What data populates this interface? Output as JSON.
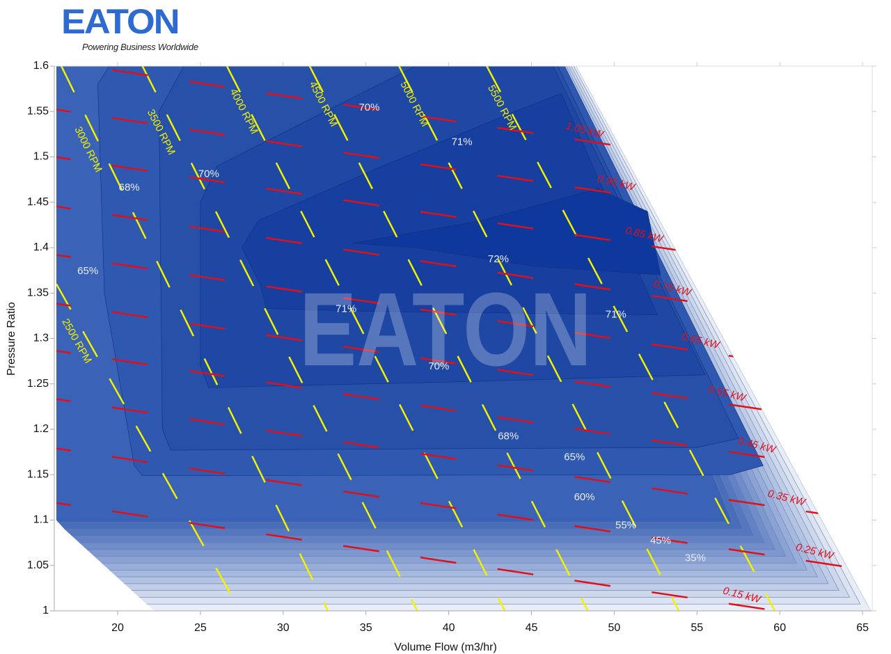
{
  "logo": {
    "word": "EATON",
    "tagline": "Powering Business Worldwide"
  },
  "watermark": "EATON",
  "chart_data": {
    "type": "contour",
    "title": "",
    "xlabel": "Volume Flow (m3/hr)",
    "ylabel": "Pressure Ratio",
    "xlim": [
      16.2,
      65.6
    ],
    "ylim": [
      1.0,
      1.6
    ],
    "x_ticks": [
      "20",
      "25",
      "30",
      "35",
      "40",
      "45",
      "50",
      "55",
      "60",
      "65"
    ],
    "y_ticks": [
      "1",
      "1.05",
      "1.1",
      "1.15",
      "1.2",
      "1.25",
      "1.3",
      "1.35",
      "1.4",
      "1.45",
      "1.5",
      "1.55",
      "1.6"
    ],
    "grid": false,
    "colors": {
      "speed_lines": "#f2f200",
      "power_lines": "#e0101a",
      "efficiency_high": "#0f389b",
      "efficiency_low": "#e8edf7"
    },
    "map_boundary": [
      [
        16.3,
        1.6
      ],
      [
        47.7,
        1.6
      ],
      [
        65.5,
        1.0
      ],
      [
        22.2,
        1.0
      ],
      [
        16.8,
        1.09
      ],
      [
        16.3,
        1.1
      ]
    ],
    "efficiency_contours": [
      {
        "level": "65%",
        "points": [
          [
            18.8,
            1.58
          ],
          [
            19.5,
            1.6
          ],
          [
            47,
            1.6
          ],
          [
            59,
            1.16
          ],
          [
            57,
            1.15
          ],
          [
            21.5,
            1.149
          ],
          [
            21,
            1.16
          ],
          [
            19.2,
            1.35
          ]
        ]
      },
      {
        "level": "68%",
        "points": [
          [
            22.5,
            1.55
          ],
          [
            24,
            1.6
          ],
          [
            46.6,
            1.6
          ],
          [
            57.5,
            1.19
          ],
          [
            55,
            1.18
          ],
          [
            23.2,
            1.177
          ],
          [
            22.7,
            1.2
          ]
        ]
      },
      {
        "level": "70%",
        "points": [
          [
            25.0,
            1.45
          ],
          [
            26,
            1.49
          ],
          [
            32,
            1.545
          ],
          [
            38,
            1.6
          ],
          [
            46.3,
            1.6
          ],
          [
            55.5,
            1.26
          ],
          [
            40,
            1.252
          ],
          [
            25.5,
            1.246
          ],
          [
            25.0,
            1.27
          ]
        ]
      },
      {
        "level": "71%",
        "points": [
          [
            27.5,
            1.4
          ],
          [
            28.5,
            1.43
          ],
          [
            36,
            1.49
          ],
          [
            44,
            1.55
          ],
          [
            46.8,
            1.57
          ],
          [
            52.6,
            1.326
          ],
          [
            35,
            1.33
          ],
          [
            29,
            1.333
          ],
          [
            28.6,
            1.36
          ]
        ]
      },
      {
        "level": "72%",
        "points": [
          [
            34.2,
            1.405
          ],
          [
            42,
            1.43
          ],
          [
            49,
            1.465
          ],
          [
            52.0,
            1.44
          ],
          [
            52.8,
            1.37
          ],
          [
            45,
            1.38
          ],
          [
            38,
            1.4
          ]
        ]
      }
    ],
    "efficiency_labels": [
      {
        "text": "70%",
        "x": 35.2,
        "y": 1.554
      },
      {
        "text": "71%",
        "x": 40.8,
        "y": 1.516
      },
      {
        "text": "70%",
        "x": 25.5,
        "y": 1.481
      },
      {
        "text": "68%",
        "x": 20.7,
        "y": 1.466
      },
      {
        "text": "65%",
        "x": 18.2,
        "y": 1.374
      },
      {
        "text": "72%",
        "x": 43.0,
        "y": 1.387
      },
      {
        "text": "71%",
        "x": 33.8,
        "y": 1.332
      },
      {
        "text": "71%",
        "x": 50.1,
        "y": 1.326
      },
      {
        "text": "70%",
        "x": 39.4,
        "y": 1.269
      },
      {
        "text": "68%",
        "x": 43.6,
        "y": 1.192
      },
      {
        "text": "65%",
        "x": 47.6,
        "y": 1.169
      },
      {
        "text": "60%",
        "x": 48.2,
        "y": 1.125
      },
      {
        "text": "55%",
        "x": 50.7,
        "y": 1.094
      },
      {
        "text": "45%",
        "x": 52.8,
        "y": 1.077
      },
      {
        "text": "35%",
        "x": 54.9,
        "y": 1.058
      }
    ],
    "speed_lines": [
      {
        "name": "2500 RPM",
        "points": [
          [
            16.3,
            1.36
          ],
          [
            27.4,
            1.0
          ]
        ],
        "label_at": [
          17.5,
          1.297
        ]
      },
      {
        "name": "3000 RPM",
        "points": [
          [
            16.6,
            1.6
          ],
          [
            32.7,
            1.0
          ]
        ],
        "label_at": [
          18.2,
          1.508
        ]
      },
      {
        "name": "3500 RPM",
        "points": [
          [
            21.5,
            1.6
          ],
          [
            38.1,
            1.0
          ]
        ],
        "label_at": [
          22.6,
          1.527
        ]
      },
      {
        "name": "4000 RPM",
        "points": [
          [
            26.6,
            1.6
          ],
          [
            43.4,
            1.0
          ]
        ],
        "label_at": [
          27.6,
          1.55
        ]
      },
      {
        "name": "4500 RPM",
        "points": [
          [
            31.6,
            1.6
          ],
          [
            48.4,
            1.0
          ]
        ],
        "label_at": [
          32.4,
          1.558
        ]
      },
      {
        "name": "5000 RPM",
        "points": [
          [
            37.0,
            1.6
          ],
          [
            53.9,
            1.0
          ]
        ],
        "label_at": [
          37.9,
          1.558
        ]
      },
      {
        "name": "5500 RPM",
        "points": [
          [
            42.3,
            1.6
          ],
          [
            59.7,
            1.0
          ]
        ],
        "label_at": [
          43.2,
          1.554
        ]
      }
    ],
    "power_lines": [
      {
        "name": "1.05 kW",
        "end": [
          50.3,
          1.512
        ]
      },
      {
        "name": "0.95 kW",
        "end": [
          52.2,
          1.454
        ]
      },
      {
        "name": "0.85 kW",
        "end": [
          53.9,
          1.397
        ]
      },
      {
        "name": "0.75 kW",
        "end": [
          55.6,
          1.338
        ]
      },
      {
        "name": "0.65 kW",
        "end": [
          57.3,
          1.28
        ]
      },
      {
        "name": "0.55 kW",
        "end": [
          58.9,
          1.222
        ]
      },
      {
        "name": "0.45 kW",
        "end": [
          60.7,
          1.165
        ]
      },
      {
        "name": "0.35 kW",
        "end": [
          62.5,
          1.107
        ]
      },
      {
        "name": "0.25 kW",
        "end": [
          64.2,
          1.048
        ]
      },
      {
        "name": "0.15 kW",
        "end": [
          59.8,
          1.0
        ]
      }
    ]
  }
}
